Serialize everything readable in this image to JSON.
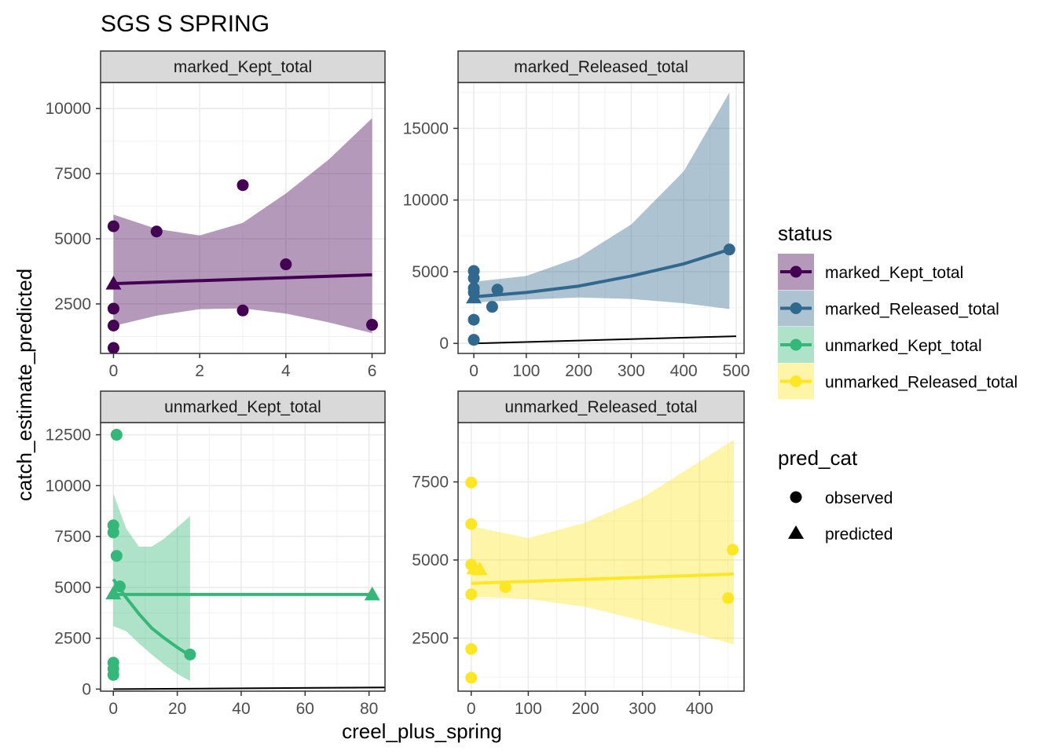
{
  "chart_data": {
    "type": "faceted-scatter-regression",
    "title": "SGS S SPRING",
    "xlabel": "creel_plus_spring",
    "ylabel": "catch_estimate_predicted",
    "legend": {
      "status": {
        "title": "status",
        "entries": [
          {
            "name": "marked_Kept_total",
            "color": "#440154"
          },
          {
            "name": "marked_Released_total",
            "color": "#31688E"
          },
          {
            "name": "unmarked_Kept_total",
            "color": "#35B779"
          },
          {
            "name": "unmarked_Released_total",
            "color": "#FDE725"
          }
        ]
      },
      "pred_cat": {
        "title": "pred_cat",
        "entries": [
          {
            "name": "observed",
            "shape": "circle"
          },
          {
            "name": "predicted",
            "shape": "triangle"
          }
        ]
      },
      "placement": "right"
    },
    "panels": [
      {
        "strip": "marked_Kept_total",
        "color": "#440154",
        "xlim": [
          -0.3,
          6.3
        ],
        "ylim": [
          600,
          11000
        ],
        "xticks": [
          0,
          2,
          4,
          6
        ],
        "yticks": [
          2500,
          5000,
          7500,
          10000
        ],
        "observed": [
          [
            0,
            5480
          ],
          [
            0,
            2320
          ],
          [
            0,
            1670
          ],
          [
            0,
            810
          ],
          [
            1,
            5280
          ],
          [
            3,
            7060
          ],
          [
            3,
            2250
          ],
          [
            4,
            4020
          ],
          [
            6,
            1700
          ]
        ],
        "predicted": [
          [
            0,
            3280
          ]
        ],
        "fit_line": [
          [
            0,
            3280
          ],
          [
            6,
            3620
          ]
        ],
        "ribbon": [
          [
            0,
            1650,
            5930
          ],
          [
            1,
            2050,
            5380
          ],
          [
            2,
            2300,
            5130
          ],
          [
            3,
            2330,
            5610
          ],
          [
            4,
            2130,
            6740
          ],
          [
            5,
            1790,
            8050
          ],
          [
            6,
            1380,
            9630
          ]
        ],
        "identity_line": null
      },
      {
        "strip": "marked_Released_total",
        "color": "#31688E",
        "xlim": [
          -30,
          515
        ],
        "ylim": [
          -700,
          18200
        ],
        "xticks": [
          0,
          100,
          200,
          300,
          400,
          500
        ],
        "yticks": [
          0,
          5000,
          10000,
          15000
        ],
        "observed": [
          [
            0,
            5050
          ],
          [
            0,
            4550
          ],
          [
            0,
            3850
          ],
          [
            0,
            3550
          ],
          [
            0,
            1650
          ],
          [
            0,
            250
          ],
          [
            35,
            2550
          ],
          [
            45,
            3750
          ],
          [
            487,
            6550
          ]
        ],
        "predicted": [
          [
            0,
            3200
          ]
        ],
        "fit_line": [
          [
            0,
            3250
          ],
          [
            100,
            3550
          ],
          [
            200,
            4000
          ],
          [
            300,
            4700
          ],
          [
            400,
            5550
          ],
          [
            487,
            6550
          ]
        ],
        "ribbon": [
          [
            0,
            2850,
            4300
          ],
          [
            100,
            3050,
            4700
          ],
          [
            200,
            3200,
            6000
          ],
          [
            300,
            3100,
            8300
          ],
          [
            400,
            2800,
            12000
          ],
          [
            487,
            2400,
            17500
          ]
        ],
        "identity_line": [
          [
            0,
            0
          ],
          [
            500,
            500
          ]
        ]
      },
      {
        "strip": "unmarked_Kept_total",
        "color": "#35B779",
        "xlim": [
          -4,
          85
        ],
        "ylim": [
          -100,
          13100
        ],
        "xticks": [
          0,
          20,
          40,
          60,
          80
        ],
        "yticks": [
          0,
          2500,
          5000,
          7500,
          10000,
          12500
        ],
        "observed": [
          [
            0,
            8050
          ],
          [
            0,
            7700
          ],
          [
            0,
            1300
          ],
          [
            0,
            1000
          ],
          [
            0,
            700
          ],
          [
            1,
            12500
          ],
          [
            1,
            6550
          ],
          [
            2,
            5050
          ],
          [
            24,
            1700
          ]
        ],
        "predicted": [
          [
            0,
            4700
          ],
          [
            81,
            4650
          ]
        ],
        "fit_line": [
          [
            0,
            5400
          ],
          [
            4,
            4500
          ],
          [
            8,
            3700
          ],
          [
            12,
            3000
          ],
          [
            16,
            2500
          ],
          [
            20,
            2050
          ],
          [
            24,
            1650
          ]
        ],
        "ribbon": [
          [
            0,
            3100,
            9600
          ],
          [
            4,
            2850,
            7900
          ],
          [
            8,
            2250,
            7000
          ],
          [
            12,
            1700,
            7000
          ],
          [
            16,
            1200,
            7400
          ],
          [
            20,
            750,
            7950
          ],
          [
            24,
            400,
            8500
          ]
        ],
        "flat_line": [
          [
            0,
            4650
          ],
          [
            81,
            4650
          ]
        ],
        "identity_line": [
          [
            0,
            0
          ],
          [
            85,
            85
          ]
        ]
      },
      {
        "strip": "unmarked_Released_total",
        "color": "#FDE725",
        "xlim": [
          -23,
          478
        ],
        "ylim": [
          800,
          9400
        ],
        "xticks": [
          0,
          100,
          200,
          300,
          400
        ],
        "yticks": [
          2500,
          5000,
          7500
        ],
        "observed": [
          [
            0,
            7480
          ],
          [
            0,
            6150
          ],
          [
            0,
            4850
          ],
          [
            0,
            3900
          ],
          [
            0,
            2150
          ],
          [
            0,
            1230
          ],
          [
            60,
            4130
          ],
          [
            450,
            3780
          ],
          [
            458,
            5330
          ]
        ],
        "predicted": [
          [
            5,
            4730
          ],
          [
            15,
            4700
          ]
        ],
        "fit_line": [
          [
            0,
            4250
          ],
          [
            460,
            4550
          ]
        ],
        "ribbon": [
          [
            0,
            3830,
            6080
          ],
          [
            100,
            3750,
            5700
          ],
          [
            200,
            3500,
            6200
          ],
          [
            300,
            3050,
            7000
          ],
          [
            400,
            2600,
            8150
          ],
          [
            460,
            2300,
            8850
          ]
        ],
        "identity_line": null
      }
    ]
  }
}
